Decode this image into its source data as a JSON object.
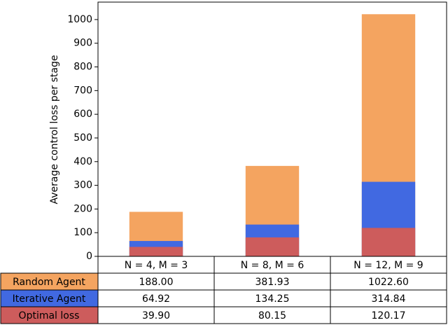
{
  "chart_data": {
    "type": "bar",
    "y_label": "Average control loss per stage",
    "categories": [
      "N = 4, M = 3",
      "N = 8, M = 6",
      "N = 12, M = 9"
    ],
    "series": [
      {
        "name": "Random Agent",
        "color": "#f4a460",
        "values": [
          188.0,
          381.93,
          1022.6
        ],
        "value_labels": [
          "188.00",
          "381.93",
          "1022.60"
        ]
      },
      {
        "name": "Iterative Agent",
        "color": "#4169e1",
        "values": [
          64.92,
          134.25,
          314.84
        ],
        "value_labels": [
          "64.92",
          "134.25",
          "314.84"
        ]
      },
      {
        "name": "Optimal loss",
        "color": "#cd5c5c",
        "values": [
          39.9,
          80.15,
          120.17
        ],
        "value_labels": [
          "39.90",
          "80.15",
          "120.17"
        ]
      }
    ],
    "ylim": [
      0,
      1073.7
    ],
    "yticks": [
      0,
      100,
      200,
      300,
      400,
      500,
      600,
      700,
      800,
      900,
      1000
    ]
  }
}
